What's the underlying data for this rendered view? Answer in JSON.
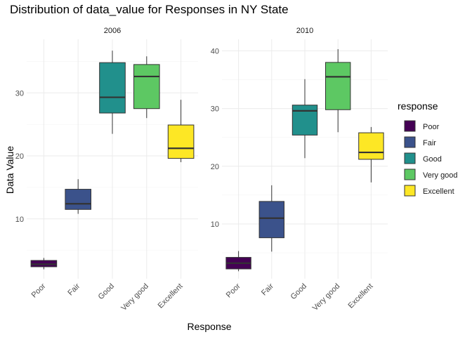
{
  "chart_data": {
    "type": "box",
    "title": "Distribution of data_value for Responses in NY State",
    "xlabel": "Response",
    "ylabel": "Data Value",
    "categories": [
      "Poor",
      "Fair",
      "Good",
      "Very good",
      "Excellent"
    ],
    "colors": {
      "Poor": "#440154",
      "Fair": "#3b528b",
      "Good": "#21908c",
      "Very good": "#5dc863",
      "Excellent": "#fde725"
    },
    "legend": {
      "title": "response",
      "position": "right",
      "entries": [
        "Poor",
        "Fair",
        "Good",
        "Very good",
        "Excellent"
      ]
    },
    "grid": true,
    "panels": [
      {
        "facet": "2006",
        "ylim": [
          0.5,
          38.5
        ],
        "yticks": [
          10,
          20,
          30
        ],
        "boxes": [
          {
            "category": "Poor",
            "min": 2.0,
            "q1": 2.4,
            "median": 2.8,
            "q3": 3.4,
            "max": 3.8
          },
          {
            "category": "Fair",
            "min": 10.8,
            "q1": 11.5,
            "median": 12.4,
            "q3": 14.7,
            "max": 16.3
          },
          {
            "category": "Good",
            "min": 23.5,
            "q1": 26.8,
            "median": 29.3,
            "q3": 34.8,
            "max": 36.7
          },
          {
            "category": "Very good",
            "min": 26.0,
            "q1": 27.5,
            "median": 32.6,
            "q3": 34.5,
            "max": 35.8
          },
          {
            "category": "Excellent",
            "min": 19.0,
            "q1": 19.6,
            "median": 21.2,
            "q3": 24.9,
            "max": 28.9
          }
        ]
      },
      {
        "facet": "2010",
        "ylim": [
          0.5,
          42.0
        ],
        "yticks": [
          10,
          20,
          30,
          40
        ],
        "boxes": [
          {
            "category": "Poor",
            "min": 1.8,
            "q1": 2.2,
            "median": 3.2,
            "q3": 4.2,
            "max": 5.3
          },
          {
            "category": "Fair",
            "min": 5.2,
            "q1": 7.6,
            "median": 11.0,
            "q3": 13.9,
            "max": 16.7
          },
          {
            "category": "Good",
            "min": 21.4,
            "q1": 25.4,
            "median": 29.6,
            "q3": 30.6,
            "max": 35.1
          },
          {
            "category": "Very good",
            "min": 25.9,
            "q1": 29.8,
            "median": 35.5,
            "q3": 38.0,
            "max": 40.3
          },
          {
            "category": "Excellent",
            "min": 17.2,
            "q1": 21.2,
            "median": 22.4,
            "q3": 25.8,
            "max": 26.8
          }
        ]
      }
    ]
  }
}
